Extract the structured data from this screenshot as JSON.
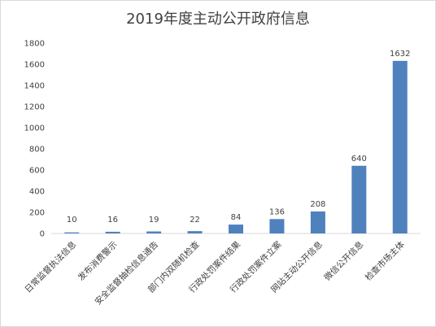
{
  "chart_data": {
    "type": "bar",
    "title": "2019年度主动公开政府信息",
    "xlabel": "",
    "ylabel": "",
    "categories": [
      "日常监督执法信息",
      "发布消费警示",
      "安全监督抽检信息通告",
      "部门内双随机检查",
      "行政处罚案件结果",
      "行政处罚案件立案",
      "网站主动公开信息",
      "微信公开信息",
      "检查市场主体"
    ],
    "values": [
      10,
      16,
      19,
      22,
      84,
      136,
      208,
      640,
      1632
    ],
    "data_labels": [
      "10",
      "16",
      "19",
      "22",
      "84",
      "136",
      "208",
      "640",
      "1632"
    ],
    "ylim": [
      0,
      1800
    ],
    "yticks": [
      "0",
      "200",
      "400",
      "600",
      "800",
      "1000",
      "1200",
      "1400",
      "1600",
      "1800"
    ],
    "grid": false,
    "legend": "none",
    "bar_color": "#4f81bd"
  }
}
